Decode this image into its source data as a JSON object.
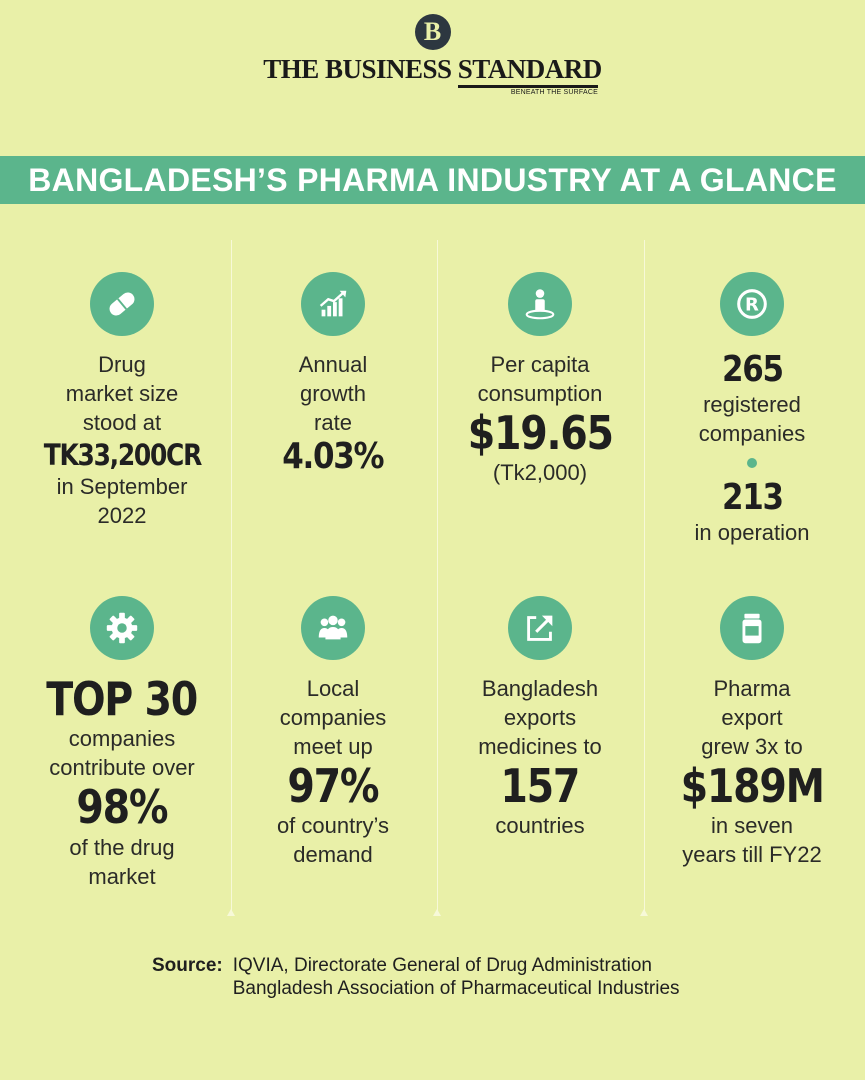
{
  "masthead": {
    "logo_letter": "B",
    "brand": "THE BUSINESS STANDARD",
    "tagline": "BENEATH THE SURFACE"
  },
  "title": "BANGLADESH’S PHARMA INDUSTRY AT A GLANCE",
  "colors": {
    "background": "#e9f0a8",
    "accent": "#5bb58c",
    "text": "#2b2b28"
  },
  "cells": {
    "market": {
      "icon": "pill-icon",
      "pre": [
        "Drug",
        "market size",
        "stood at"
      ],
      "value": "TK33,200CR",
      "post": [
        "in September",
        "2022"
      ]
    },
    "growth": {
      "icon": "growth-chart-icon",
      "pre": [
        "Annual",
        "growth",
        "rate"
      ],
      "value": "4.03%"
    },
    "percapita": {
      "icon": "person-icon",
      "pre": [
        "Per capita",
        "consumption"
      ],
      "value": "$19.65",
      "post": [
        "(Tk2,000)"
      ]
    },
    "registered": {
      "icon": "registered-icon",
      "value1": "265",
      "label1": [
        "registered",
        "companies"
      ],
      "value2": "213",
      "label2": [
        "in operation"
      ]
    },
    "top30": {
      "icon": "gear-icon",
      "value": "TOP 30",
      "mid": [
        "companies",
        "contribute over"
      ],
      "value2": "98%",
      "post": [
        "of the drug",
        "market"
      ]
    },
    "local": {
      "icon": "people-icon",
      "pre": [
        "Local",
        "companies",
        "meet up"
      ],
      "value": "97%",
      "post": [
        "of country’s",
        "demand"
      ]
    },
    "exports": {
      "icon": "export-arrow-icon",
      "pre": [
        "Bangladesh",
        "exports",
        "medicines to"
      ],
      "value": "157",
      "post": [
        "countries"
      ]
    },
    "export_growth": {
      "icon": "medicine-jar-icon",
      "pre": [
        "Pharma",
        "export",
        "grew 3x to"
      ],
      "value": "$189M",
      "post": [
        "in seven",
        "years till FY22"
      ]
    }
  },
  "source": {
    "label": "Source:",
    "lines": [
      "IQVIA, Directorate General of Drug Administration",
      "Bangladesh Association of Pharmaceutical Industries"
    ]
  }
}
